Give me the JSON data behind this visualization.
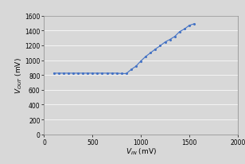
{
  "xlabel": "$V_{IN}$ (mV)",
  "ylabel": "$V_{OUT}$ (mV)",
  "xlim": [
    0,
    2000
  ],
  "ylim": [
    0,
    1600
  ],
  "xticks": [
    0,
    500,
    1000,
    1500,
    2000
  ],
  "yticks": [
    0,
    200,
    400,
    600,
    800,
    1000,
    1200,
    1400,
    1600
  ],
  "x_data": [
    100,
    150,
    200,
    250,
    300,
    350,
    400,
    450,
    500,
    550,
    600,
    650,
    700,
    750,
    800,
    850,
    900,
    950,
    1000,
    1050,
    1100,
    1150,
    1200,
    1250,
    1300,
    1350,
    1400,
    1450,
    1500,
    1550
  ],
  "y_data": [
    825,
    825,
    825,
    825,
    825,
    825,
    825,
    825,
    825,
    825,
    825,
    825,
    825,
    825,
    820,
    820,
    875,
    920,
    990,
    1050,
    1100,
    1150,
    1195,
    1245,
    1280,
    1320,
    1385,
    1420,
    1470,
    1490
  ],
  "line_color": "#4472C4",
  "dot_color": "#4472C4",
  "bg_color": "#d8d8d8",
  "plot_bg": "#d8d8d8",
  "grid_color": "#ffffff"
}
